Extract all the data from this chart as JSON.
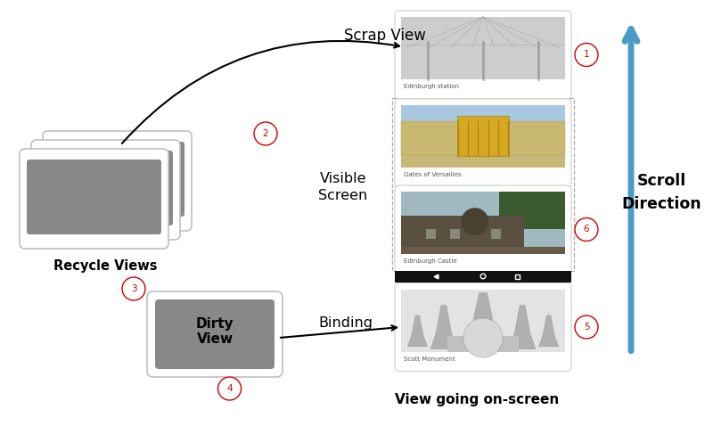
{
  "bg_color": "#ffffff",
  "recycle_views_label": "Recycle Views",
  "dirty_view_label": "Dirty\nView",
  "binding_label": "Binding",
  "scrap_view_label": "Scrap View",
  "visible_screen_label": "Visible\nScreen",
  "view_going_onscreen_label": "View going on-screen",
  "scroll_direction_label": "Scroll\nDirection",
  "step_color": "#cc0000",
  "arrow_color": "#4a9cc7",
  "card_border_color": "#cccccc",
  "nav_bar_color": "#111111",
  "gray_fill": "#888888",
  "light_gray": "#c0c0c0",
  "white": "#ffffff",
  "dashed_border_color": "#aaaaaa",
  "image_captions": [
    "Edinburgh station",
    "Gates of Versailles",
    "Edinburgh Castle",
    "Scott Monument"
  ]
}
